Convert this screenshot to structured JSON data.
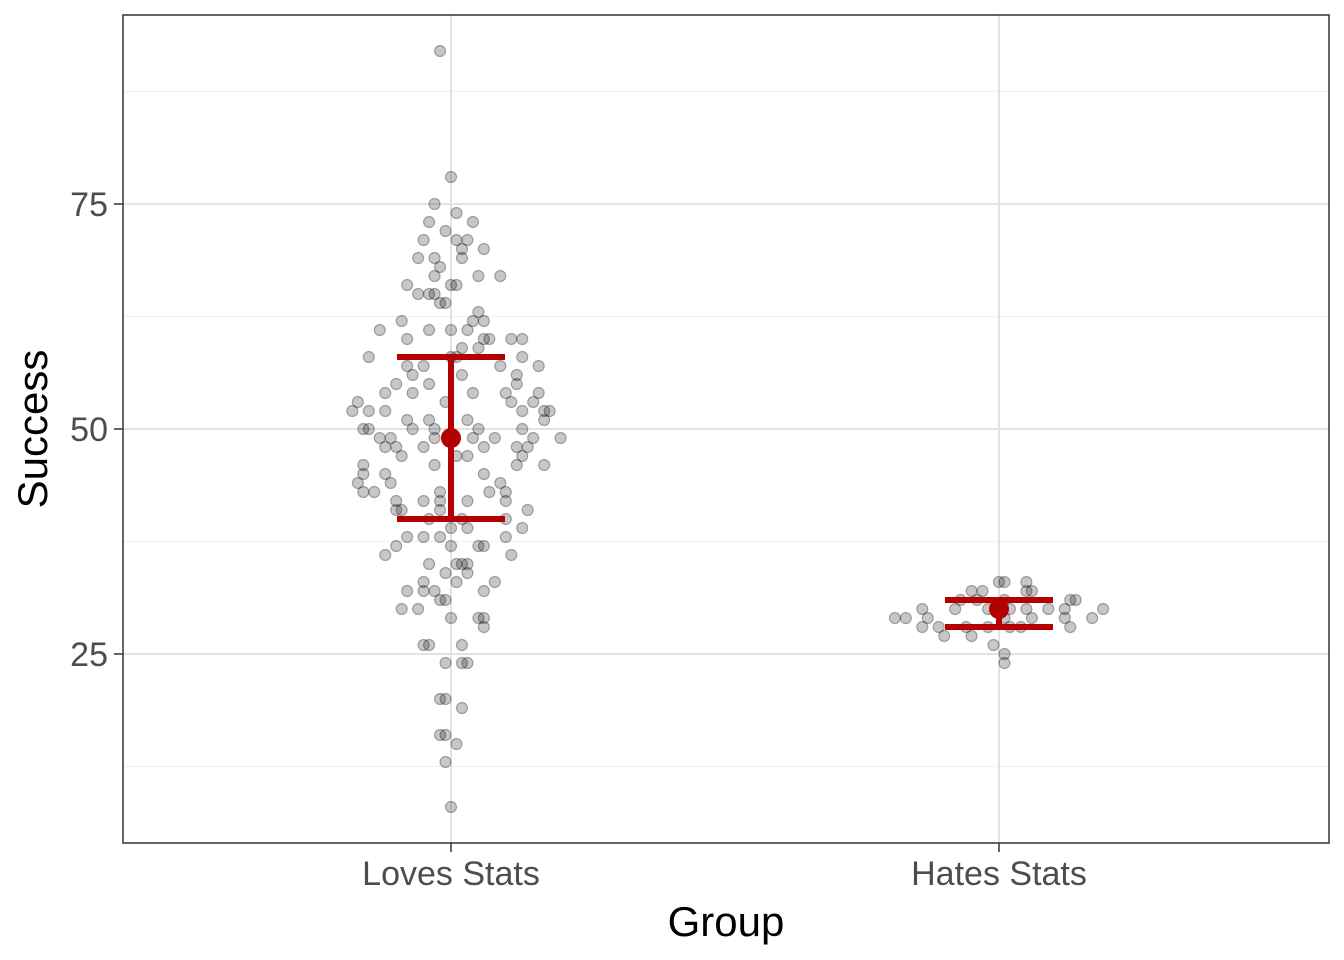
{
  "chart_data": {
    "type": "scatter",
    "xlabel": "Group",
    "ylabel": "Success",
    "ylim": [
      4,
      96
    ],
    "y_ticks": [
      25,
      50,
      75
    ],
    "y_minor_ticks": [
      12.5,
      37.5,
      62.5,
      87.5
    ],
    "grid": true,
    "categories": [
      "Loves Stats",
      "Hates Stats"
    ],
    "series": [
      {
        "category": "Loves Stats",
        "mean": 49,
        "error_low": 40,
        "error_high": 58,
        "points": [
          [
            -0.02,
            92
          ],
          [
            0.0,
            78
          ],
          [
            -0.03,
            75
          ],
          [
            0.01,
            74
          ],
          [
            -0.04,
            73
          ],
          [
            0.04,
            73
          ],
          [
            -0.01,
            72
          ],
          [
            -0.05,
            71
          ],
          [
            0.01,
            71
          ],
          [
            0.03,
            71
          ],
          [
            0.02,
            70
          ],
          [
            0.06,
            70
          ],
          [
            -0.03,
            69
          ],
          [
            -0.06,
            69
          ],
          [
            0.02,
            69
          ],
          [
            -0.02,
            68
          ],
          [
            -0.03,
            67
          ],
          [
            0.05,
            67
          ],
          [
            0.09,
            67
          ],
          [
            -0.08,
            66
          ],
          [
            0.0,
            66
          ],
          [
            0.01,
            66
          ],
          [
            -0.04,
            65
          ],
          [
            -0.06,
            65
          ],
          [
            -0.03,
            65
          ],
          [
            -0.02,
            64
          ],
          [
            -0.01,
            64
          ],
          [
            0.05,
            63
          ],
          [
            0.04,
            62
          ],
          [
            -0.09,
            62
          ],
          [
            0.06,
            62
          ],
          [
            -0.13,
            61
          ],
          [
            -0.04,
            61
          ],
          [
            0.03,
            61
          ],
          [
            0.0,
            61
          ],
          [
            -0.08,
            60
          ],
          [
            0.07,
            60
          ],
          [
            0.06,
            60
          ],
          [
            0.11,
            60
          ],
          [
            0.13,
            60
          ],
          [
            0.02,
            59
          ],
          [
            0.05,
            59
          ],
          [
            -0.15,
            58
          ],
          [
            0.0,
            58
          ],
          [
            0.01,
            58
          ],
          [
            0.13,
            58
          ],
          [
            -0.08,
            57
          ],
          [
            -0.05,
            57
          ],
          [
            0.09,
            57
          ],
          [
            0.16,
            57
          ],
          [
            -0.07,
            56
          ],
          [
            0.02,
            56
          ],
          [
            0.12,
            56
          ],
          [
            -0.1,
            55
          ],
          [
            -0.04,
            55
          ],
          [
            0.12,
            55
          ],
          [
            -0.07,
            54
          ],
          [
            -0.12,
            54
          ],
          [
            0.04,
            54
          ],
          [
            0.1,
            54
          ],
          [
            0.16,
            54
          ],
          [
            -0.17,
            53
          ],
          [
            -0.01,
            53
          ],
          [
            0.11,
            53
          ],
          [
            0.15,
            53
          ],
          [
            -0.18,
            52
          ],
          [
            -0.15,
            52
          ],
          [
            0.17,
            52
          ],
          [
            0.18,
            52
          ],
          [
            -0.12,
            52
          ],
          [
            0.13,
            52
          ],
          [
            -0.08,
            51
          ],
          [
            0.03,
            51
          ],
          [
            0.17,
            51
          ],
          [
            -0.04,
            51
          ],
          [
            -0.16,
            50
          ],
          [
            -0.03,
            50
          ],
          [
            0.13,
            50
          ],
          [
            -0.15,
            50
          ],
          [
            -0.07,
            50
          ],
          [
            0.05,
            50
          ],
          [
            -0.13,
            49
          ],
          [
            -0.11,
            49
          ],
          [
            0.08,
            49
          ],
          [
            0.15,
            49
          ],
          [
            0.2,
            49
          ],
          [
            -0.03,
            49
          ],
          [
            0.04,
            49
          ],
          [
            -0.12,
            48
          ],
          [
            0.06,
            48
          ],
          [
            0.12,
            48
          ],
          [
            0.14,
            48
          ],
          [
            -0.1,
            48
          ],
          [
            -0.05,
            48
          ],
          [
            -0.09,
            47
          ],
          [
            0.01,
            47
          ],
          [
            0.13,
            47
          ],
          [
            0.03,
            47
          ],
          [
            -0.16,
            46
          ],
          [
            -0.03,
            46
          ],
          [
            0.12,
            46
          ],
          [
            0.17,
            46
          ],
          [
            -0.16,
            45
          ],
          [
            -0.12,
            45
          ],
          [
            0.06,
            45
          ],
          [
            -0.17,
            44
          ],
          [
            -0.11,
            44
          ],
          [
            0.09,
            44
          ],
          [
            -0.16,
            43
          ],
          [
            -0.14,
            43
          ],
          [
            -0.02,
            43
          ],
          [
            0.07,
            43
          ],
          [
            0.1,
            43
          ],
          [
            -0.1,
            42
          ],
          [
            -0.05,
            42
          ],
          [
            -0.02,
            42
          ],
          [
            0.03,
            42
          ],
          [
            0.1,
            42
          ],
          [
            -0.1,
            41
          ],
          [
            -0.02,
            41
          ],
          [
            -0.09,
            41
          ],
          [
            0.14,
            41
          ],
          [
            -0.04,
            40
          ],
          [
            0.02,
            40
          ],
          [
            0.1,
            40
          ],
          [
            0.0,
            39
          ],
          [
            0.03,
            39
          ],
          [
            0.13,
            39
          ],
          [
            -0.08,
            38
          ],
          [
            -0.05,
            38
          ],
          [
            -0.02,
            38
          ],
          [
            0.1,
            38
          ],
          [
            -0.1,
            37
          ],
          [
            0.0,
            37
          ],
          [
            0.05,
            37
          ],
          [
            0.06,
            37
          ],
          [
            -0.12,
            36
          ],
          [
            0.11,
            36
          ],
          [
            -0.04,
            35
          ],
          [
            0.01,
            35
          ],
          [
            0.02,
            35
          ],
          [
            0.03,
            35
          ],
          [
            -0.01,
            34
          ],
          [
            0.03,
            34
          ],
          [
            0.01,
            33
          ],
          [
            -0.05,
            33
          ],
          [
            0.08,
            33
          ],
          [
            -0.08,
            32
          ],
          [
            -0.05,
            32
          ],
          [
            -0.03,
            32
          ],
          [
            0.06,
            32
          ],
          [
            -0.01,
            31
          ],
          [
            -0.02,
            31
          ],
          [
            -0.06,
            30
          ],
          [
            -0.09,
            30
          ],
          [
            0.06,
            29
          ],
          [
            0.0,
            29
          ],
          [
            0.05,
            29
          ],
          [
            0.06,
            28
          ],
          [
            -0.05,
            26
          ],
          [
            -0.04,
            26
          ],
          [
            0.02,
            26
          ],
          [
            -0.01,
            24
          ],
          [
            0.02,
            24
          ],
          [
            0.03,
            24
          ],
          [
            -0.02,
            20
          ],
          [
            -0.01,
            20
          ],
          [
            0.02,
            19
          ],
          [
            -0.02,
            16
          ],
          [
            -0.01,
            16
          ],
          [
            0.01,
            15
          ],
          [
            -0.01,
            13
          ],
          [
            0.0,
            8
          ]
        ]
      },
      {
        "category": "Hates Stats",
        "mean": 30,
        "error_low": 28,
        "error_high": 31,
        "points": [
          [
            0.0,
            33
          ],
          [
            0.01,
            33
          ],
          [
            0.05,
            33
          ],
          [
            -0.05,
            32
          ],
          [
            -0.03,
            32
          ],
          [
            0.05,
            32
          ],
          [
            0.06,
            32
          ],
          [
            -0.07,
            31
          ],
          [
            -0.04,
            31
          ],
          [
            0.01,
            31
          ],
          [
            0.13,
            31
          ],
          [
            0.14,
            31
          ],
          [
            -0.14,
            30
          ],
          [
            -0.08,
            30
          ],
          [
            -0.02,
            30
          ],
          [
            0.02,
            30
          ],
          [
            0.05,
            30
          ],
          [
            0.09,
            30
          ],
          [
            0.12,
            30
          ],
          [
            0.19,
            30
          ],
          [
            -0.17,
            29
          ],
          [
            -0.19,
            29
          ],
          [
            -0.13,
            29
          ],
          [
            0.01,
            29
          ],
          [
            0.06,
            29
          ],
          [
            0.12,
            29
          ],
          [
            0.17,
            29
          ],
          [
            -0.14,
            28
          ],
          [
            -0.11,
            28
          ],
          [
            -0.06,
            28
          ],
          [
            -0.02,
            28
          ],
          [
            0.02,
            28
          ],
          [
            0.04,
            28
          ],
          [
            0.13,
            28
          ],
          [
            -0.1,
            27
          ],
          [
            -0.05,
            27
          ],
          [
            -0.01,
            26
          ],
          [
            0.01,
            25
          ],
          [
            0.01,
            24
          ]
        ]
      }
    ]
  }
}
